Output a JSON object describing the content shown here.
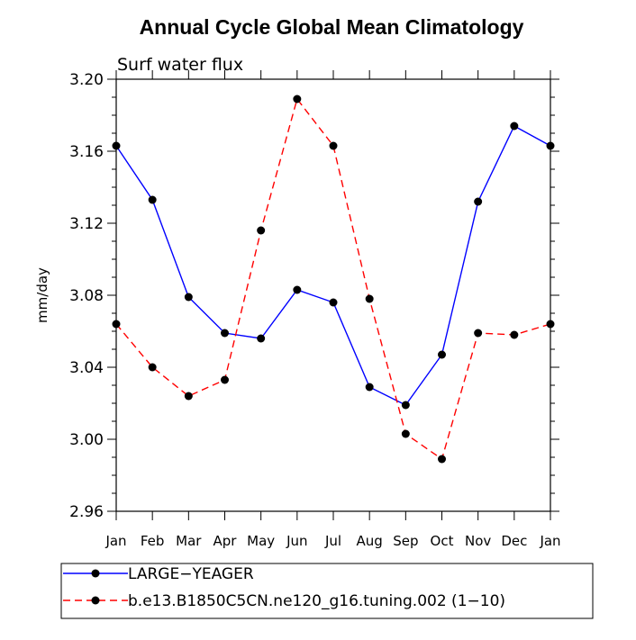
{
  "chart_data": {
    "type": "line",
    "title": "Annual Cycle Global Mean Climatology",
    "subtitle": "Surf water flux",
    "xlabel": "",
    "ylabel": "mm/day",
    "categories": [
      "Jan",
      "Feb",
      "Mar",
      "Apr",
      "May",
      "Jun",
      "Jul",
      "Aug",
      "Sep",
      "Oct",
      "Nov",
      "Dec",
      "Jan"
    ],
    "ylim": [
      2.96,
      3.2
    ],
    "yticks": [
      "2.96",
      "3.00",
      "3.04",
      "3.08",
      "3.12",
      "3.16",
      "3.20"
    ],
    "grid": false,
    "legend_position": "bottom",
    "series": [
      {
        "name": "LARGE−YEAGER",
        "color": "#0000ff",
        "dashed": false,
        "values": [
          3.163,
          3.133,
          3.079,
          3.059,
          3.056,
          3.083,
          3.076,
          3.029,
          3.019,
          3.047,
          3.132,
          3.174,
          3.163
        ]
      },
      {
        "name": "b.e13.B1850C5CN.ne120_g16.tuning.002 (1−10)",
        "color": "#ff0000",
        "dashed": true,
        "values": [
          3.064,
          3.04,
          3.024,
          3.033,
          3.116,
          3.189,
          3.163,
          3.078,
          3.003,
          2.989,
          3.059,
          3.058,
          3.064
        ]
      }
    ]
  }
}
